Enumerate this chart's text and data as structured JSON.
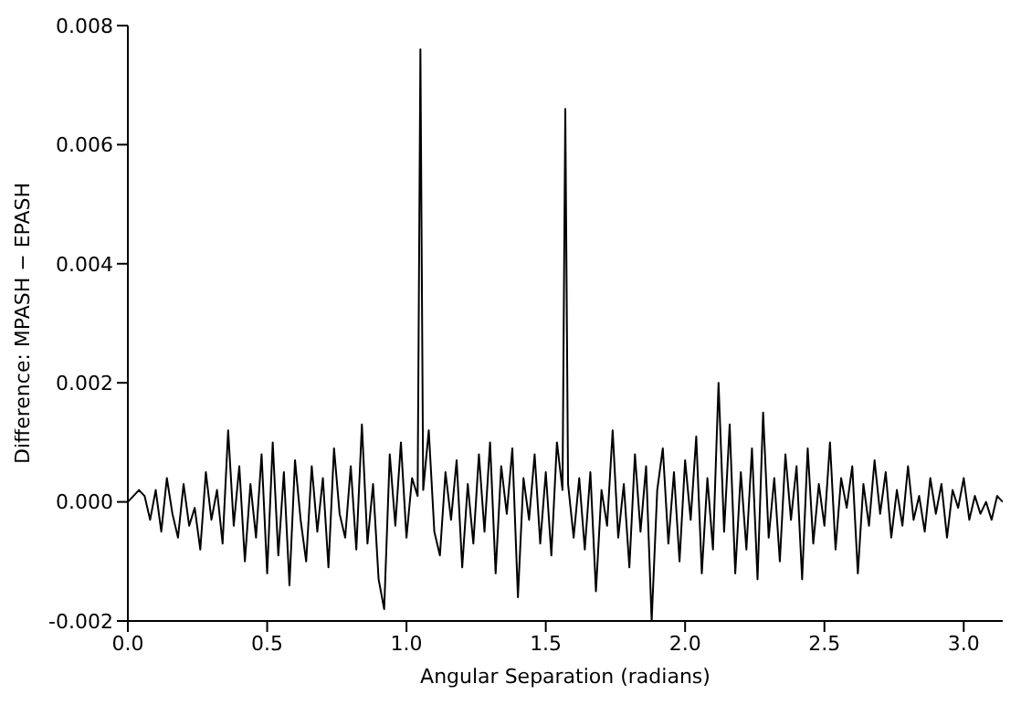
{
  "chart_data": {
    "type": "line",
    "xlabel": "Angular Separation (radians)",
    "ylabel": "Difference: MPASH − EPASH",
    "x": [
      0,
      0.02,
      0.04,
      0.06,
      0.08,
      0.1,
      0.12,
      0.14,
      0.16,
      0.18,
      0.2,
      0.22,
      0.24,
      0.26,
      0.28,
      0.3,
      0.32,
      0.34,
      0.36,
      0.38,
      0.4,
      0.42,
      0.44,
      0.46,
      0.48,
      0.5,
      0.52,
      0.54,
      0.56,
      0.58,
      0.6,
      0.62,
      0.64,
      0.66,
      0.68,
      0.7,
      0.72,
      0.74,
      0.76,
      0.78,
      0.8,
      0.82,
      0.84,
      0.86,
      0.88,
      0.9,
      0.92,
      0.94,
      0.96,
      0.98,
      1,
      1.02,
      1.04,
      1.05,
      1.06,
      1.08,
      1.1,
      1.12,
      1.14,
      1.16,
      1.18,
      1.2,
      1.22,
      1.24,
      1.26,
      1.28,
      1.3,
      1.32,
      1.34,
      1.36,
      1.38,
      1.4,
      1.42,
      1.44,
      1.46,
      1.48,
      1.5,
      1.52,
      1.54,
      1.56,
      1.57,
      1.58,
      1.6,
      1.62,
      1.64,
      1.66,
      1.68,
      1.7,
      1.72,
      1.74,
      1.76,
      1.78,
      1.8,
      1.82,
      1.84,
      1.86,
      1.88,
      1.9,
      1.92,
      1.94,
      1.96,
      1.98,
      2,
      2.02,
      2.04,
      2.06,
      2.08,
      2.1,
      2.12,
      2.14,
      2.16,
      2.18,
      2.2,
      2.22,
      2.24,
      2.26,
      2.28,
      2.3,
      2.32,
      2.34,
      2.36,
      2.38,
      2.4,
      2.42,
      2.44,
      2.46,
      2.48,
      2.5,
      2.52,
      2.54,
      2.56,
      2.58,
      2.6,
      2.62,
      2.64,
      2.66,
      2.68,
      2.7,
      2.72,
      2.74,
      2.76,
      2.78,
      2.8,
      2.82,
      2.84,
      2.86,
      2.88,
      2.9,
      2.92,
      2.94,
      2.96,
      2.98,
      3,
      3.02,
      3.04,
      3.06,
      3.08,
      3.1,
      3.12,
      3.14
    ],
    "series": [
      {
        "color": "#000000",
        "values": [
          0,
          0.0001,
          0.0002,
          0.0001,
          -0.0003,
          0.0002,
          -0.0005,
          0.0004,
          -0.0002,
          -0.0006,
          0.0003,
          -0.0004,
          -0.0001,
          -0.0008,
          0.0005,
          -0.0003,
          0.0002,
          -0.0007,
          0.0012,
          -0.0004,
          0.0006,
          -0.001,
          0.0003,
          -0.0006,
          0.0008,
          -0.0012,
          0.001,
          -0.0009,
          0.0005,
          -0.0014,
          0.0007,
          -0.0003,
          -0.001,
          0.0006,
          -0.0005,
          0.0004,
          -0.0011,
          0.0009,
          -0.0002,
          -0.0006,
          0.0006,
          -0.0008,
          0.0013,
          -0.0007,
          0.0003,
          -0.0013,
          -0.0018,
          0.0008,
          -0.0004,
          0.001,
          -0.0006,
          0.0004,
          0.0001,
          0.0076,
          0.0002,
          0.0012,
          -0.0005,
          -0.0009,
          0.0005,
          -0.0003,
          0.0007,
          -0.0011,
          0.0003,
          -0.0007,
          0.0008,
          -0.0005,
          0.001,
          -0.0012,
          0.0006,
          -0.0002,
          0.0009,
          -0.0016,
          0.0004,
          -0.0003,
          0.0008,
          -0.0007,
          0.0005,
          -0.0009,
          0.001,
          0.0002,
          0.0066,
          0.0003,
          -0.0006,
          0.0004,
          -0.0008,
          0.0005,
          -0.0015,
          0.0002,
          -0.0004,
          0.0012,
          -0.0006,
          0.0003,
          -0.0011,
          0.0008,
          -0.0005,
          0.0006,
          -0.002,
          0.0002,
          0.0009,
          -0.0007,
          0.0005,
          -0.001,
          0.0007,
          -0.0003,
          0.0011,
          -0.0012,
          0.0004,
          -0.0008,
          0.002,
          -0.0005,
          0.0013,
          -0.0012,
          0.0005,
          -0.0008,
          0.0009,
          -0.0013,
          0.0015,
          -0.0006,
          0.0004,
          -0.001,
          0.0008,
          -0.0003,
          0.0006,
          -0.0013,
          0.0009,
          -0.0007,
          0.0003,
          -0.0004,
          0.001,
          -0.0008,
          0.0004,
          -0.0001,
          0.0006,
          -0.0012,
          0.0003,
          -0.0004,
          0.0007,
          -0.0002,
          0.0005,
          -0.0006,
          0.0002,
          -0.0004,
          0.0006,
          -0.0003,
          0.0001,
          -0.0005,
          0.0004,
          -0.0002,
          0.0003,
          -0.0006,
          0.0002,
          -0.0001,
          0.0004,
          -0.0003,
          0.0001,
          -0.0002,
          0,
          -0.0003,
          0.0001,
          0
        ]
      }
    ],
    "xlim": [
      0,
      3.14
    ],
    "xticks": [
      {
        "value": 0,
        "label": "0.0"
      },
      {
        "value": 0.5,
        "label": "0.5"
      },
      {
        "value": 1,
        "label": "1.0"
      },
      {
        "value": 1.5,
        "label": "1.5"
      },
      {
        "value": 2,
        "label": "2.0"
      },
      {
        "value": 2.5,
        "label": "2.5"
      },
      {
        "value": 3,
        "label": "3.0"
      }
    ],
    "ylim": [
      -0.002,
      0.008
    ],
    "yticks": [
      {
        "value": -0.002,
        "label": "-0.002"
      },
      {
        "value": 0,
        "label": "0.000"
      },
      {
        "value": 0.002,
        "label": "0.002"
      },
      {
        "value": 0.004,
        "label": "0.004"
      },
      {
        "value": 0.006,
        "label": "0.006"
      },
      {
        "value": 0.008,
        "label": "0.008"
      }
    ],
    "grid": false,
    "legend": false,
    "marker": "none",
    "line_style": "solid"
  }
}
